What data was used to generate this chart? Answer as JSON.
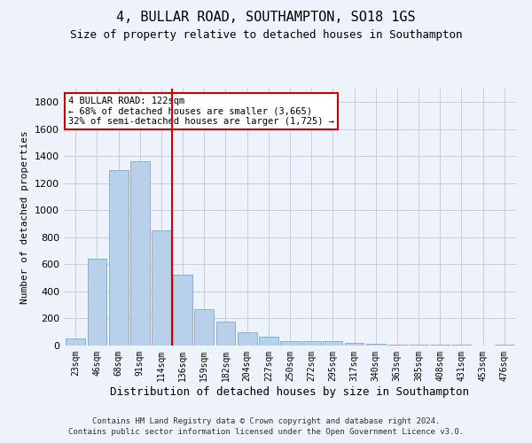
{
  "title1": "4, BULLAR ROAD, SOUTHAMPTON, SO18 1GS",
  "title2": "Size of property relative to detached houses in Southampton",
  "xlabel": "Distribution of detached houses by size in Southampton",
  "ylabel": "Number of detached properties",
  "categories": [
    "23sqm",
    "46sqm",
    "68sqm",
    "91sqm",
    "114sqm",
    "136sqm",
    "159sqm",
    "182sqm",
    "204sqm",
    "227sqm",
    "250sqm",
    "272sqm",
    "295sqm",
    "317sqm",
    "340sqm",
    "363sqm",
    "385sqm",
    "408sqm",
    "431sqm",
    "453sqm",
    "476sqm"
  ],
  "values": [
    50,
    640,
    1300,
    1360,
    850,
    525,
    270,
    175,
    100,
    65,
    35,
    30,
    30,
    20,
    10,
    8,
    5,
    5,
    5,
    3,
    5
  ],
  "bar_color": "#b8d0ea",
  "bar_edge_color": "#7aaac8",
  "vline_color": "#cc0000",
  "vline_index": 4.5,
  "annotation_text": "4 BULLAR ROAD: 122sqm\n← 68% of detached houses are smaller (3,665)\n32% of semi-detached houses are larger (1,725) →",
  "annotation_box_color": "#ffffff",
  "annotation_box_edge": "#cc0000",
  "ylim": [
    0,
    1900
  ],
  "yticks": [
    0,
    200,
    400,
    600,
    800,
    1000,
    1200,
    1400,
    1600,
    1800
  ],
  "footer1": "Contains HM Land Registry data © Crown copyright and database right 2024.",
  "footer2": "Contains public sector information licensed under the Open Government Licence v3.0.",
  "bg_color": "#eef2fb",
  "grid_color": "#c5cce0",
  "title1_fontsize": 11,
  "title2_fontsize": 9,
  "ylabel_fontsize": 8,
  "xlabel_fontsize": 9,
  "tick_fontsize": 7,
  "ytick_fontsize": 8,
  "footer_fontsize": 6.5
}
